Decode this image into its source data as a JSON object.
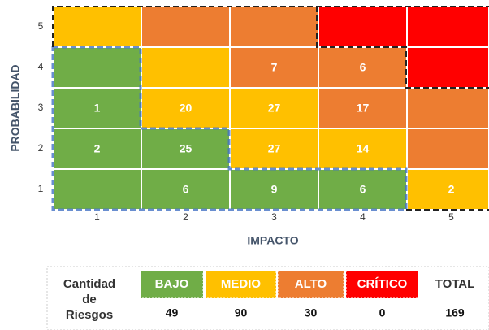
{
  "chart_data": {
    "type": "heatmap",
    "x_label": "IMPACTO",
    "y_label": "PROBABILIDAD",
    "x_categories": [
      1,
      2,
      3,
      4,
      5
    ],
    "y_categories": [
      1,
      2,
      3,
      4,
      5
    ],
    "values": [
      [
        null,
        6,
        9,
        6,
        2
      ],
      [
        2,
        25,
        27,
        14,
        null
      ],
      [
        1,
        20,
        27,
        17,
        null
      ],
      [
        null,
        null,
        7,
        6,
        null
      ],
      [
        null,
        null,
        null,
        null,
        null
      ]
    ],
    "colors": [
      [
        "#70ad47",
        "#70ad47",
        "#70ad47",
        "#70ad47",
        "#ffc000"
      ],
      [
        "#70ad47",
        "#70ad47",
        "#ffc000",
        "#ffc000",
        "#ed7d31"
      ],
      [
        "#70ad47",
        "#ffc000",
        "#ffc000",
        "#ed7d31",
        "#ed7d31"
      ],
      [
        "#70ad47",
        "#ffc000",
        "#ed7d31",
        "#ed7d31",
        "#ff0000"
      ],
      [
        "#ffc000",
        "#ed7d31",
        "#ed7d31",
        "#ff0000",
        "#ff0000"
      ]
    ]
  },
  "summary": {
    "label_lines": [
      "Cantidad",
      "de",
      "Riesgos"
    ],
    "headers": [
      "BAJO",
      "MEDIO",
      "ALTO",
      "CRÍTICO",
      "TOTAL"
    ],
    "colors": [
      "#70ad47",
      "#ffc000",
      "#ed7d31",
      "#ff0000",
      null
    ],
    "values": [
      49,
      90,
      30,
      0,
      169
    ]
  }
}
